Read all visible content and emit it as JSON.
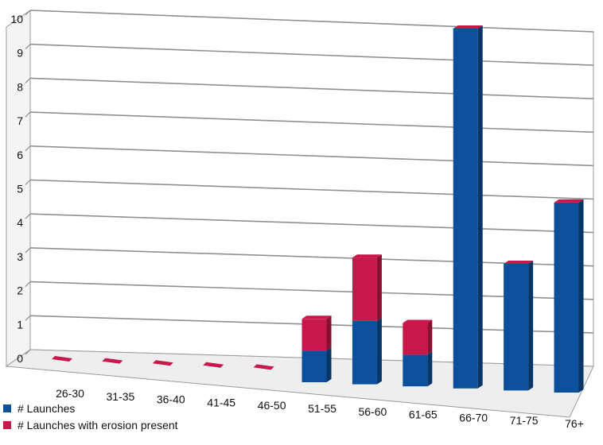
{
  "chart_data": {
    "type": "bar",
    "stacked": true,
    "three_d": true,
    "categories": [
      "26-30",
      "31-35",
      "36-40",
      "41-45",
      "46-50",
      "51-55",
      "56-60",
      "61-65",
      "66-70",
      "71-75",
      "76+"
    ],
    "y_ticks": [
      "0",
      "1",
      "2",
      "3",
      "4",
      "5",
      "6",
      "7",
      "8",
      "9",
      "10"
    ],
    "ylim": [
      0,
      10
    ],
    "grid": true,
    "legend_position": "bottom-left",
    "series": [
      {
        "name": "# Launches",
        "color": "#0c4f9a",
        "values": [
          0,
          0,
          0,
          0,
          0,
          1,
          2,
          1,
          10,
          4,
          6
        ]
      },
      {
        "name": "# Launches with erosion present",
        "color": "#c8174a",
        "values": [
          0,
          0,
          0,
          0,
          0,
          1,
          2,
          1,
          0,
          0,
          0
        ]
      }
    ]
  }
}
